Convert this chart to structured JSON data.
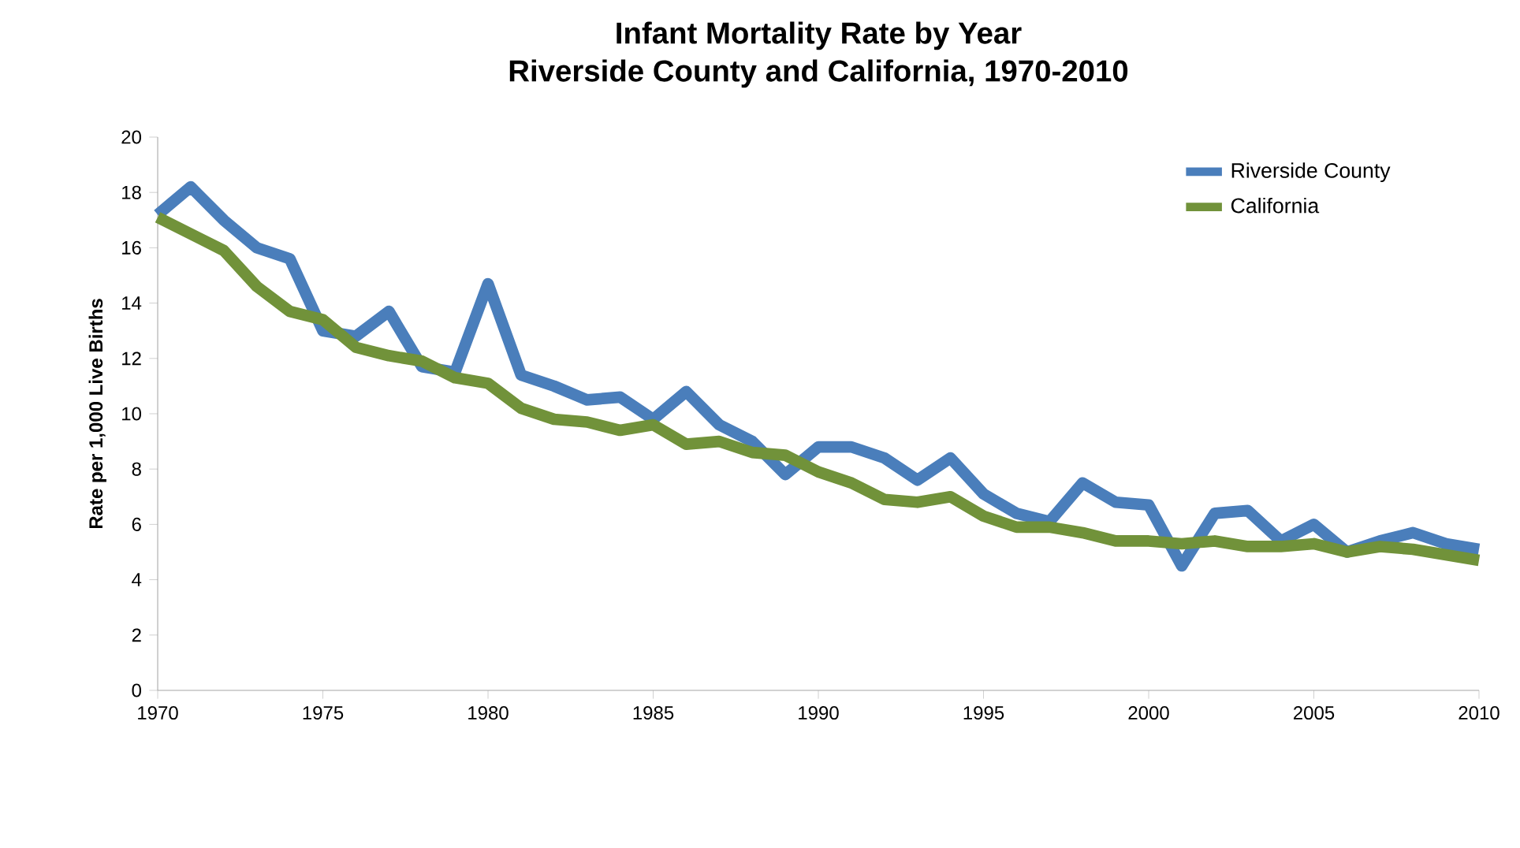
{
  "chart_data": {
    "type": "line",
    "title": "Infant Mortality Rate by Year\nRiverside County and California, 1970-2010",
    "ylabel": "Rate per 1,000 Live Births",
    "x": [
      1970,
      1971,
      1972,
      1973,
      1974,
      1975,
      1976,
      1977,
      1978,
      1979,
      1980,
      1981,
      1982,
      1983,
      1984,
      1985,
      1986,
      1987,
      1988,
      1989,
      1990,
      1991,
      1992,
      1993,
      1994,
      1995,
      1996,
      1997,
      1998,
      1999,
      2000,
      2001,
      2002,
      2003,
      2004,
      2005,
      2006,
      2007,
      2008,
      2009,
      2010
    ],
    "series": [
      {
        "name": "Riverside County",
        "color": "#4a7ebb",
        "values": [
          17.2,
          18.2,
          17.0,
          16.0,
          15.6,
          13.0,
          12.8,
          13.7,
          11.7,
          11.5,
          14.7,
          11.4,
          11.0,
          10.5,
          10.6,
          9.8,
          10.8,
          9.6,
          9.0,
          7.8,
          8.8,
          8.8,
          8.4,
          7.6,
          8.4,
          7.1,
          6.4,
          6.1,
          7.5,
          6.8,
          6.7,
          4.5,
          6.4,
          6.5,
          5.4,
          6.0,
          5.0,
          5.4,
          5.7,
          5.3,
          5.1
        ]
      },
      {
        "name": "California",
        "color": "#71923a",
        "values": [
          17.1,
          16.5,
          15.9,
          14.6,
          13.7,
          13.4,
          12.4,
          12.1,
          11.9,
          11.3,
          11.1,
          10.2,
          9.8,
          9.7,
          9.4,
          9.6,
          8.9,
          9.0,
          8.6,
          8.5,
          7.9,
          7.5,
          6.9,
          6.8,
          7.0,
          6.3,
          5.9,
          5.9,
          5.7,
          5.4,
          5.4,
          5.3,
          5.4,
          5.2,
          5.2,
          5.3,
          5.0,
          5.2,
          5.1,
          4.9,
          4.7
        ]
      }
    ],
    "xlim": [
      1970,
      2010
    ],
    "xticks": [
      1970,
      1975,
      1980,
      1985,
      1990,
      1995,
      2000,
      2005,
      2010
    ],
    "ylim": [
      0,
      20
    ],
    "yticks": [
      0,
      2,
      4,
      6,
      8,
      10,
      12,
      14,
      16,
      18,
      20
    ],
    "grid": false,
    "legend": "top right",
    "marker": "none",
    "line_style": "solid"
  }
}
